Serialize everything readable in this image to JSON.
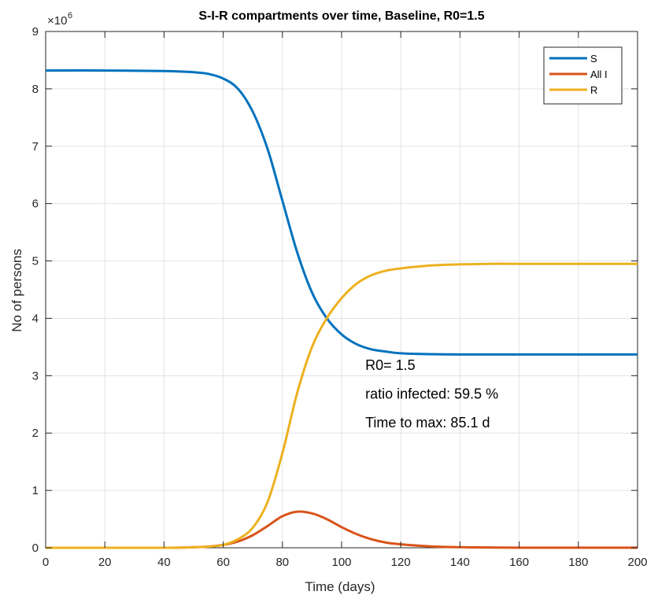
{
  "chart_data": {
    "type": "line",
    "title": "S-I-R compartments over time, Baseline, R0=1.5",
    "xlabel": "Time (days)",
    "ylabel": "No of persons",
    "y_exponent_label": "×10",
    "y_exponent_power": "6",
    "xlim": [
      0,
      200
    ],
    "ylim": [
      0,
      9
    ],
    "xticks": [
      0,
      20,
      40,
      60,
      80,
      100,
      120,
      140,
      160,
      180,
      200
    ],
    "yticks": [
      0,
      1,
      2,
      3,
      4,
      5,
      6,
      7,
      8,
      9
    ],
    "grid": true,
    "legend_position": "top-right",
    "series": [
      {
        "name": "S",
        "color": "#0072BD",
        "x": [
          0,
          20,
          40,
          50,
          55,
          60,
          65,
          70,
          75,
          80,
          85,
          90,
          95,
          100,
          105,
          110,
          115,
          120,
          130,
          140,
          150,
          160,
          180,
          200
        ],
        "y": [
          8.32,
          8.32,
          8.31,
          8.29,
          8.26,
          8.18,
          8.0,
          7.6,
          6.95,
          6.05,
          5.15,
          4.45,
          4.0,
          3.72,
          3.55,
          3.46,
          3.42,
          3.39,
          3.375,
          3.37,
          3.37,
          3.37,
          3.37,
          3.37
        ]
      },
      {
        "name": "All I",
        "color": "#D95319",
        "x": [
          0,
          40,
          50,
          55,
          60,
          65,
          70,
          75,
          80,
          85,
          90,
          95,
          100,
          105,
          110,
          115,
          120,
          130,
          140,
          150,
          160,
          180,
          200
        ],
        "y": [
          0.0,
          0.0,
          0.01,
          0.02,
          0.05,
          0.11,
          0.22,
          0.38,
          0.55,
          0.63,
          0.6,
          0.5,
          0.36,
          0.24,
          0.15,
          0.09,
          0.06,
          0.025,
          0.01,
          0.005,
          0.002,
          0.001,
          0.001
        ]
      },
      {
        "name": "R",
        "color": "#EDB120",
        "x": [
          0,
          40,
          50,
          55,
          60,
          65,
          70,
          75,
          80,
          85,
          90,
          95,
          100,
          105,
          110,
          115,
          120,
          130,
          140,
          150,
          160,
          180,
          200
        ],
        "y": [
          0.0,
          0.0,
          0.01,
          0.02,
          0.05,
          0.15,
          0.35,
          0.8,
          1.65,
          2.7,
          3.5,
          4.0,
          4.35,
          4.6,
          4.75,
          4.83,
          4.87,
          4.92,
          4.94,
          4.95,
          4.95,
          4.95,
          4.95
        ]
      }
    ],
    "annotations": [
      {
        "text": "R0= 1.5",
        "x": 108,
        "y": 3.1
      },
      {
        "text": "ratio infected: 59.5 %",
        "x": 108,
        "y": 2.6
      },
      {
        "text": "Time to max: 85.1 d",
        "x": 108,
        "y": 2.1
      }
    ]
  }
}
